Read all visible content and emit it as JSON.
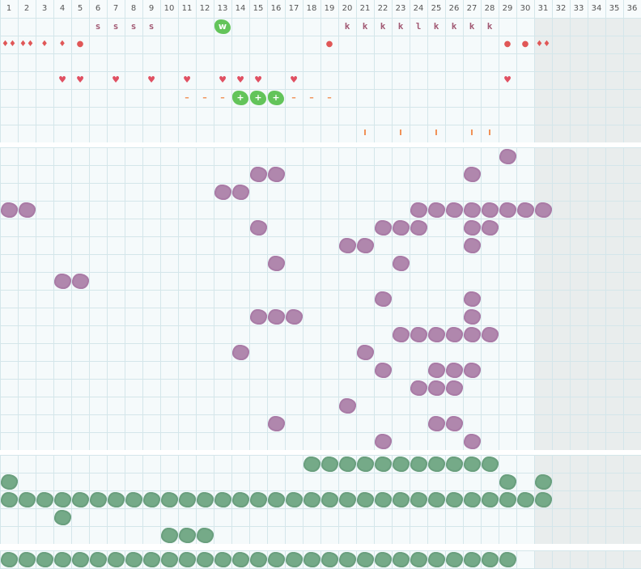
{
  "columns": [
    "1",
    "2",
    "3",
    "4",
    "5",
    "6",
    "7",
    "8",
    "9",
    "10",
    "11",
    "12",
    "13",
    "14",
    "15",
    "16",
    "17",
    "18",
    "19",
    "20",
    "21",
    "22",
    "23",
    "24",
    "25",
    "26",
    "27",
    "28",
    "29",
    "30",
    "31",
    "32",
    "33",
    "34",
    "35",
    "36"
  ],
  "top_rows": [
    {
      "row": 0,
      "cells": [
        {
          "col": 6,
          "text": "s",
          "style": "k"
        },
        {
          "col": 7,
          "text": "s",
          "style": "k"
        },
        {
          "col": 8,
          "text": "s",
          "style": "k"
        },
        {
          "col": 9,
          "text": "s",
          "style": "k"
        },
        {
          "col": 13,
          "text": "w",
          "style": "gbadge"
        },
        {
          "col": 20,
          "text": "k",
          "style": "k"
        },
        {
          "col": 21,
          "text": "k",
          "style": "k"
        },
        {
          "col": 22,
          "text": "k",
          "style": "k"
        },
        {
          "col": 23,
          "text": "k",
          "style": "k"
        },
        {
          "col": 24,
          "text": "l",
          "style": "k"
        },
        {
          "col": 25,
          "text": "k",
          "style": "k"
        },
        {
          "col": 26,
          "text": "k",
          "style": "k"
        },
        {
          "col": 27,
          "text": "k",
          "style": "k"
        },
        {
          "col": 28,
          "text": "k",
          "style": "k"
        }
      ]
    },
    {
      "row": 1,
      "cells": [
        {
          "col": 1,
          "text": "♦♦",
          "style": "red"
        },
        {
          "col": 2,
          "text": "♦♦",
          "style": "red"
        },
        {
          "col": 3,
          "text": "♦",
          "style": "red"
        },
        {
          "col": 4,
          "text": "♦",
          "style": "red"
        },
        {
          "col": 5,
          "text": "●",
          "style": "red"
        },
        {
          "col": 19,
          "text": "●",
          "style": "red"
        },
        {
          "col": 29,
          "text": "●",
          "style": "red"
        },
        {
          "col": 30,
          "text": "●",
          "style": "red"
        },
        {
          "col": 31,
          "text": "♦♦",
          "style": "red"
        }
      ]
    },
    {
      "row": 2,
      "cells": []
    },
    {
      "row": 3,
      "cells": [
        {
          "col": 4,
          "text": "♥",
          "style": "heart"
        },
        {
          "col": 5,
          "text": "♥",
          "style": "heart"
        },
        {
          "col": 7,
          "text": "♥",
          "style": "heart"
        },
        {
          "col": 9,
          "text": "♥",
          "style": "heart"
        },
        {
          "col": 11,
          "text": "♥",
          "style": "heart"
        },
        {
          "col": 13,
          "text": "♥",
          "style": "heart"
        },
        {
          "col": 14,
          "text": "♥",
          "style": "heart"
        },
        {
          "col": 15,
          "text": "♥",
          "style": "heart"
        },
        {
          "col": 17,
          "text": "♥",
          "style": "heart"
        },
        {
          "col": 29,
          "text": "♥",
          "style": "heart"
        }
      ]
    },
    {
      "row": 4,
      "cells": [
        {
          "col": 11,
          "text": "–",
          "style": "dash"
        },
        {
          "col": 12,
          "text": "–",
          "style": "dash"
        },
        {
          "col": 13,
          "text": "–",
          "style": "dash"
        },
        {
          "col": 14,
          "text": "+",
          "style": "gbadge"
        },
        {
          "col": 15,
          "text": "+",
          "style": "gbadge"
        },
        {
          "col": 16,
          "text": "+",
          "style": "gbadge"
        },
        {
          "col": 17,
          "text": "–",
          "style": "dash"
        },
        {
          "col": 18,
          "text": "–",
          "style": "dash"
        },
        {
          "col": 19,
          "text": "–",
          "style": "dash"
        }
      ]
    },
    {
      "row": 5,
      "cells": []
    },
    {
      "row": 6,
      "cells": [
        {
          "col": 21,
          "text": "I",
          "style": "tick"
        },
        {
          "col": 23,
          "text": "I",
          "style": "tick"
        },
        {
          "col": 25,
          "text": "I",
          "style": "tick"
        },
        {
          "col": 27,
          "text": "I",
          "style": "tick"
        },
        {
          "col": 28,
          "text": "I",
          "style": "tick"
        }
      ]
    }
  ],
  "purple_rows": [
    [
      29
    ],
    [
      15,
      16,
      27
    ],
    [
      13,
      14
    ],
    [
      1,
      2,
      24,
      25,
      26,
      27,
      28,
      29,
      30,
      31
    ],
    [
      15,
      22,
      23,
      24,
      27,
      28
    ],
    [
      20,
      21,
      27
    ],
    [
      16,
      23
    ],
    [
      4,
      5
    ],
    [
      22,
      27
    ],
    [
      15,
      16,
      17,
      27
    ],
    [
      23,
      24,
      25,
      26,
      27,
      28
    ],
    [
      14,
      21
    ],
    [
      22,
      25,
      26,
      27
    ],
    [
      24,
      25,
      26
    ],
    [
      20
    ],
    [
      16,
      25,
      26
    ],
    [
      22,
      27
    ]
  ],
  "teal_rows": [
    [
      18,
      19,
      20,
      21,
      22,
      23,
      24,
      25,
      26,
      27,
      28
    ],
    [
      1,
      29,
      31
    ],
    [
      1,
      2,
      3,
      4,
      5,
      6,
      7,
      8,
      9,
      10,
      11,
      12,
      13,
      14,
      15,
      16,
      17,
      18,
      19,
      20,
      21,
      22,
      23,
      24,
      25,
      26,
      27,
      28,
      29,
      30,
      31
    ],
    [
      4
    ],
    [
      10,
      11,
      12
    ]
  ],
  "bottom_row": [
    1,
    2,
    3,
    4,
    5,
    6,
    7,
    8,
    9,
    10,
    11,
    12,
    13,
    14,
    15,
    16,
    17,
    18,
    19,
    20,
    21,
    22,
    23,
    24,
    25,
    26,
    27,
    28,
    29
  ],
  "colors": {
    "purple": "#b087ad",
    "teal": "#75aa88",
    "green": "#63c45a",
    "grid": "#d4e6ea",
    "shade": "#e9eded"
  }
}
